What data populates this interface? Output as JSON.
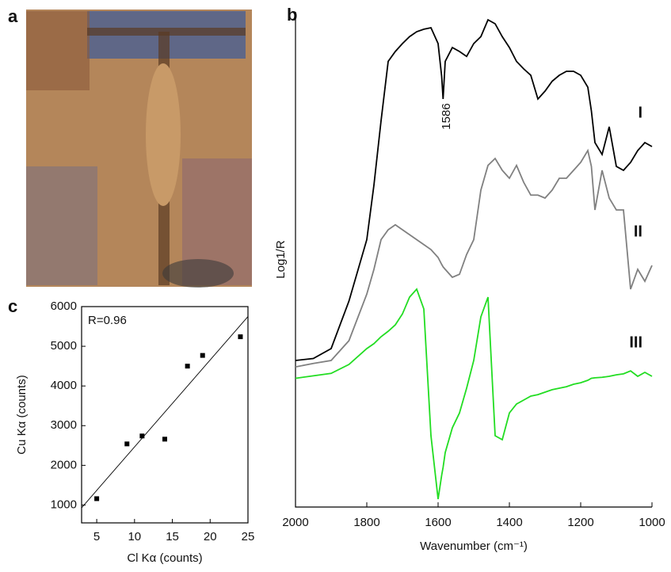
{
  "image_panel": {
    "label": "a"
  },
  "chart_data": [
    {
      "type": "line",
      "panel": "b",
      "x_label": "Wavenumber (cm⁻¹)",
      "y_label": "Log1/R",
      "annotation": "1586",
      "xlim": [
        2000,
        1000
      ],
      "xticks": [
        2000,
        1800,
        1600,
        1400,
        1200,
        1000
      ],
      "ylim": [
        0,
        100
      ],
      "x": [
        2000,
        1950,
        1900,
        1850,
        1800,
        1780,
        1760,
        1740,
        1720,
        1700,
        1680,
        1660,
        1640,
        1620,
        1600,
        1590,
        1586,
        1580,
        1560,
        1540,
        1520,
        1500,
        1480,
        1460,
        1440,
        1420,
        1400,
        1380,
        1360,
        1340,
        1320,
        1300,
        1280,
        1260,
        1240,
        1220,
        1200,
        1180,
        1170,
        1160,
        1140,
        1120,
        1100,
        1080,
        1060,
        1040,
        1020,
        1000
      ],
      "series": [
        {
          "name": "I",
          "color": "#000000",
          "values": [
            29.6,
            30,
            32,
            41.6,
            54,
            65,
            78,
            90,
            92,
            93.6,
            95,
            96,
            96.5,
            96.8,
            93.6,
            87,
            82.4,
            90,
            92.8,
            92,
            91,
            93.6,
            95,
            98.4,
            97.6,
            95,
            92.8,
            90,
            88.5,
            87.2,
            82.4,
            84,
            86,
            87.2,
            88,
            88,
            87.2,
            84.8,
            80,
            73.6,
            71.2,
            76.8,
            68.8,
            68,
            69.6,
            72,
            73.6,
            72.8
          ]
        },
        {
          "name": "II",
          "color": "#808080",
          "values": [
            28.3,
            29,
            29.6,
            33.6,
            43,
            48,
            54,
            56,
            57,
            56,
            55,
            54,
            53,
            52,
            50.4,
            49,
            48.5,
            48,
            46.4,
            47,
            51,
            54,
            64,
            69,
            70.4,
            68,
            66.4,
            69,
            65.6,
            63,
            63,
            62.4,
            64,
            66.4,
            66.4,
            68,
            69.6,
            72,
            68.8,
            60,
            68,
            62.4,
            60,
            60,
            44,
            48,
            45.6,
            48.8
          ]
        },
        {
          "name": "III",
          "color": "#22dd22",
          "values": [
            26,
            26.5,
            27,
            28.8,
            32,
            33,
            34.4,
            35.5,
            36.8,
            39,
            42.4,
            44,
            40,
            14.4,
            1.6,
            6.4,
            8,
            11,
            16,
            19,
            24,
            29.6,
            38.4,
            42.4,
            14.4,
            13.6,
            19,
            20.8,
            21.6,
            22.4,
            22.7,
            23.2,
            23.7,
            24,
            24.3,
            24.8,
            25.1,
            25.6,
            26,
            26.1,
            26.2,
            26.4,
            26.7,
            26.9,
            27.5,
            26.4,
            27.2,
            26.4
          ]
        }
      ]
    },
    {
      "type": "scatter",
      "panel": "c",
      "x_label": "Cl Kα (counts)",
      "y_label": "Cu Kα (counts)",
      "annotation": "R=0.96",
      "xlim": [
        3,
        25
      ],
      "xticks": [
        5,
        10,
        15,
        20,
        25
      ],
      "ylim": [
        550,
        6000
      ],
      "yticks": [
        1000,
        2000,
        3000,
        4000,
        5000,
        6000
      ],
      "color": "#000000",
      "x": [
        5,
        9,
        11,
        14,
        17,
        19,
        24
      ],
      "values": [
        1160,
        2540,
        2740,
        2660,
        4500,
        4770,
        5240
      ],
      "fit": {
        "x": [
          3,
          25
        ],
        "values": [
          930,
          5750
        ]
      }
    }
  ]
}
